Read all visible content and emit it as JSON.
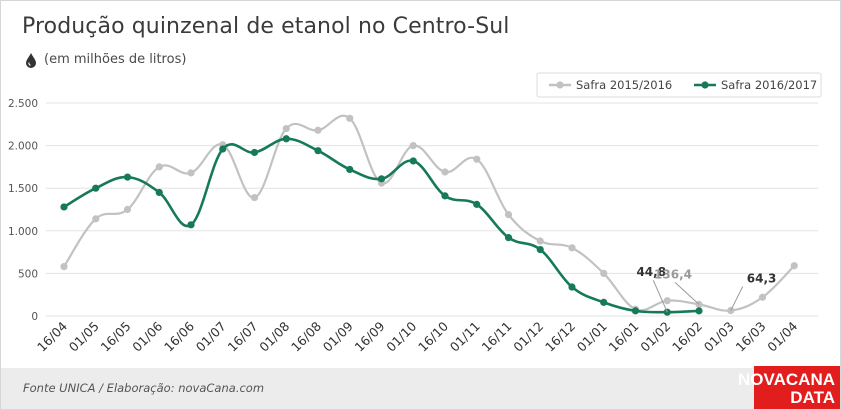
{
  "header": {
    "title": "Produção quinzenal de etanol no Centro-Sul",
    "subtitle": "(em milhões de litros)",
    "icon": "drop-icon"
  },
  "footer": {
    "source": "Fonte UNICA / Elaboração: novaCana.com",
    "logo_line1": "NOVACANA",
    "logo_line2": "DATA",
    "logo_color": "#e21d1d"
  },
  "chart_data": {
    "type": "line",
    "title": "Produção quinzenal de etanol no Centro-Sul",
    "subtitle": "(em milhões de litros)",
    "categories": [
      "16/04",
      "01/05",
      "16/05",
      "01/06",
      "16/06",
      "01/07",
      "16/07",
      "01/08",
      "16/08",
      "01/09",
      "16/09",
      "01/10",
      "16/10",
      "01/11",
      "16/11",
      "01/12",
      "16/12",
      "01/01",
      "16/01",
      "01/02",
      "16/02",
      "01/03",
      "16/03",
      "01/04"
    ],
    "ylim": [
      0,
      2500
    ],
    "yticks": [
      0,
      500,
      1000,
      1500,
      2000,
      2500
    ],
    "ytick_labels": [
      "0",
      "500",
      "1.000",
      "1.500",
      "2.000",
      "2.500"
    ],
    "grid": true,
    "legend_position": "top-right",
    "series": [
      {
        "name": "Safra 2015/2016",
        "color": "#c2c2c2",
        "values": [
          580,
          1140,
          1250,
          1750,
          1680,
          2010,
          1390,
          2200,
          2180,
          2320,
          1560,
          2000,
          1690,
          1840,
          1190,
          880,
          800,
          500,
          80,
          180,
          136.4,
          64.3,
          220,
          590
        ]
      },
      {
        "name": "Safra 2016/2017",
        "color": "#167a58",
        "values": [
          1280,
          1500,
          1630,
          1450,
          1070,
          1960,
          1920,
          2080,
          1940,
          1720,
          1610,
          1820,
          1410,
          1310,
          920,
          780,
          340,
          160,
          60,
          44.8,
          60,
          null,
          null,
          null
        ]
      }
    ],
    "annotations": [
      {
        "text": "44,8",
        "series": "Safra 2016/2017",
        "category": "01/02"
      },
      {
        "text": "136,4",
        "series": "Safra 2015/2016",
        "category": "16/02"
      },
      {
        "text": "64,3",
        "series": "Safra 2015/2016",
        "category": "01/03"
      }
    ]
  }
}
